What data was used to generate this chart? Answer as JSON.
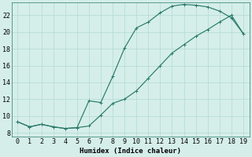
{
  "xlabel": "Humidex (Indice chaleur)",
  "ylabel": "",
  "bg_color": "#d5eeea",
  "grid_color": "#b8ddd8",
  "line_color": "#2a7a6a",
  "xlim": [
    -0.5,
    19.5
  ],
  "ylim": [
    7.5,
    23.5
  ],
  "xticks": [
    0,
    1,
    2,
    3,
    4,
    5,
    6,
    7,
    8,
    9,
    10,
    11,
    12,
    13,
    14,
    15,
    16,
    17,
    18,
    19
  ],
  "yticks": [
    8,
    10,
    12,
    14,
    16,
    18,
    20,
    22
  ],
  "upper_x": [
    0,
    1,
    2,
    3,
    4,
    5,
    6,
    7,
    8,
    9,
    10,
    11,
    12,
    13,
    14,
    15,
    16,
    17,
    18,
    19
  ],
  "upper_y": [
    9.3,
    8.7,
    9.0,
    8.7,
    8.5,
    8.6,
    11.8,
    11.6,
    14.7,
    18.1,
    20.5,
    21.2,
    22.3,
    23.1,
    23.3,
    23.2,
    23.0,
    22.5,
    21.7,
    19.8
  ],
  "lower_x": [
    0,
    1,
    2,
    3,
    4,
    5,
    6,
    7,
    8,
    9,
    10,
    11,
    12,
    13,
    14,
    15,
    16,
    17,
    18,
    19
  ],
  "lower_y": [
    9.3,
    8.7,
    9.0,
    8.7,
    8.5,
    8.6,
    8.8,
    10.1,
    11.5,
    12.0,
    13.0,
    14.5,
    16.0,
    17.5,
    18.5,
    19.5,
    20.3,
    21.2,
    22.0,
    19.8
  ],
  "marker_size": 2.5,
  "line_width": 0.85,
  "font_size": 6.5,
  "xlabel_fontsize": 6.5,
  "tick_fontsize": 6.0,
  "figsize": [
    3.2,
    2.0
  ],
  "dpi": 100
}
